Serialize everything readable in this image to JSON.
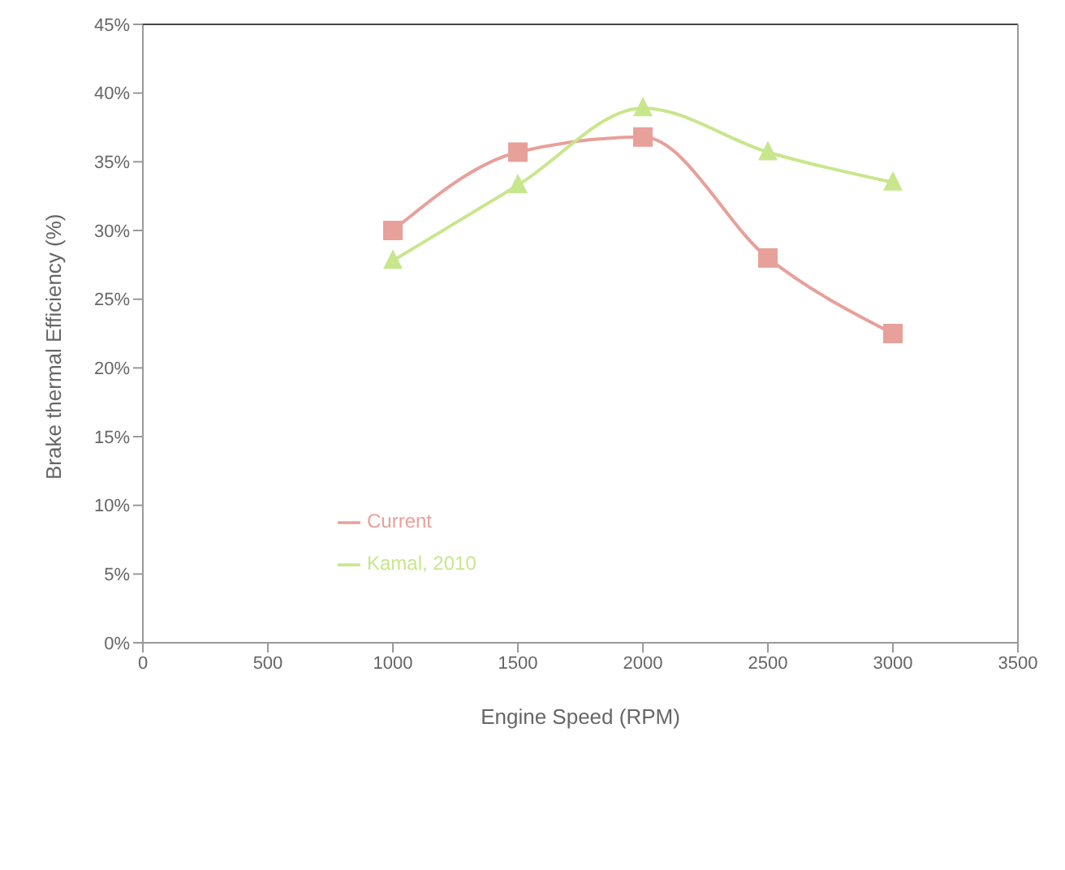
{
  "chart_data": {
    "type": "line",
    "xlabel": "Engine Speed (RPM)",
    "ylabel": "Brake thermal Efficiency (%)",
    "x": [
      1000,
      1500,
      2000,
      2500,
      3000
    ],
    "series": [
      {
        "name": "Current",
        "color": "#e8a09a",
        "values": [
          30.0,
          35.7,
          36.8,
          28.0,
          22.5
        ],
        "marker": "square"
      },
      {
        "name": "Kamal, 2010",
        "color": "#c8e68c",
        "values": [
          27.8,
          33.3,
          38.9,
          35.7,
          33.5
        ],
        "marker": "triangle"
      }
    ],
    "xlim": [
      0,
      3500
    ],
    "xticks": [
      0,
      500,
      1000,
      1500,
      2000,
      2500,
      3000,
      3500
    ],
    "ylim": [
      0,
      45
    ],
    "yticks": [
      {
        "value": 0,
        "label": "0%"
      },
      {
        "value": 5,
        "label": "5%"
      },
      {
        "value": 10,
        "label": "10%"
      },
      {
        "value": 15,
        "label": "15%"
      },
      {
        "value": 20,
        "label": "20%"
      },
      {
        "value": 25,
        "label": "25%"
      },
      {
        "value": 30,
        "label": "30%"
      },
      {
        "value": 35,
        "label": "35%"
      },
      {
        "value": 40,
        "label": "40%"
      },
      {
        "value": 45,
        "label": "45%"
      }
    ],
    "grid": false,
    "legend": "left"
  }
}
